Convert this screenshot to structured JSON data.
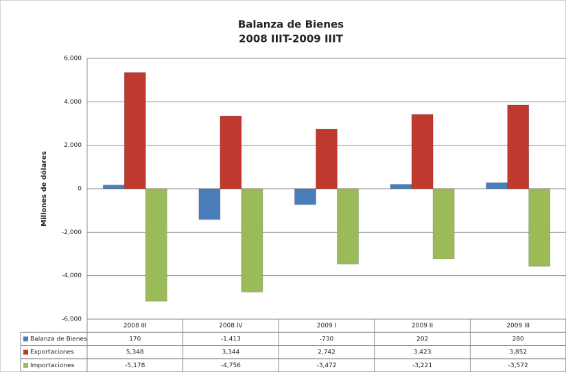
{
  "chart_data": {
    "type": "bar",
    "title": "Balanza de Bienes",
    "subtitle": "2008 IIIT-2009 IIIT",
    "y_label": "Millones de dólares",
    "categories": [
      "2008 III",
      "2008 IV",
      "2009 I",
      "2009 II",
      "2009 III"
    ],
    "series": [
      {
        "name": "Balanza de Bienes",
        "color": "#4a7ebb",
        "values": [
          170,
          -1413,
          -730,
          202,
          280
        ],
        "value_labels": [
          "170",
          "-1,413",
          "-730",
          "202",
          "280"
        ]
      },
      {
        "name": "Exportaciones",
        "color": "#c0392f",
        "values": [
          5348,
          3344,
          2742,
          3423,
          3852
        ],
        "value_labels": [
          "5,348",
          "3,344",
          "2,742",
          "3,423",
          "3,852"
        ]
      },
      {
        "name": "Importaciones",
        "color": "#9bbb59",
        "values": [
          -5178,
          -4756,
          -3472,
          -3221,
          -3572
        ],
        "value_labels": [
          "-5,178",
          "-4,756",
          "-3,472",
          "-3,221",
          "-3,572"
        ]
      }
    ],
    "ylim": [
      -6000,
      6000
    ],
    "yticks": [
      {
        "value": 6000,
        "label": "6,000"
      },
      {
        "value": 4000,
        "label": "4,000"
      },
      {
        "value": 2000,
        "label": "2,000"
      },
      0,
      {
        "value": -2000,
        "label": "-2,000"
      },
      {
        "value": -4000,
        "label": "-4,000"
      },
      {
        "value": -6000,
        "label": "-6,000"
      }
    ],
    "grid": true
  }
}
